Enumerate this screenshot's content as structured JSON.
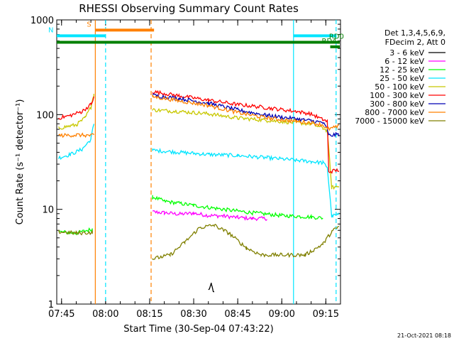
{
  "chart_data": {
    "type": "line",
    "title": "RHESSI Observing Summary Count Rates",
    "xlabel": "Start Time (30-Sep-04 07:43:22)",
    "ylabel": "Count Rate (s⁻¹ detector⁻¹)",
    "x_unit": "UT time",
    "xlim": [
      "07:43:22",
      "09:20:00"
    ],
    "ylim": [
      1,
      1000
    ],
    "yscale": "log",
    "x_ticks": [
      "07:45",
      "08:00",
      "08:15",
      "08:30",
      "08:45",
      "09:00",
      "09:15"
    ],
    "y_ticks": [
      "1",
      "10",
      "100",
      "1000"
    ],
    "legend_header": [
      "Det 1,3,4,5,6,9,",
      "FDecim 2, Att 0"
    ],
    "legend_position": "right",
    "footer_date": "21-Oct-2021 08:18",
    "flags": [
      {
        "label": "S",
        "start": "07:56:30",
        "end": "08:16:30",
        "level": 780,
        "color": "#ff8000"
      },
      {
        "label": "N",
        "start": "07:43:22",
        "end": "08:00:00",
        "level": 680,
        "color": "#00e5ff"
      },
      {
        "label": "",
        "start": "09:04:00",
        "end": "09:18:30",
        "level": 680,
        "color": "#00e5ff"
      },
      {
        "label": "",
        "start": "07:43:22",
        "end": "09:20:00",
        "level": 580,
        "color": "#008000"
      },
      {
        "label": "RD0",
        "start": "09:19:00",
        "end": "09:20:00",
        "level": 580,
        "color": "#008000"
      },
      {
        "label": "RD4",
        "start": "09:16:30",
        "end": "09:20:00",
        "level": 520,
        "color": "#008000"
      }
    ],
    "vlines": [
      {
        "t": "07:56:30",
        "color": "#ff8000",
        "style": "solid"
      },
      {
        "t": "08:00:00",
        "color": "#00e5ff",
        "style": "dashed"
      },
      {
        "t": "08:15:30",
        "color": "#ff8000",
        "style": "dashed"
      },
      {
        "t": "09:04:00",
        "color": "#00e5ff",
        "style": "solid"
      },
      {
        "t": "09:18:30",
        "color": "#00e5ff",
        "style": "dashed"
      }
    ],
    "series": [
      {
        "name": "3 - 6 keV",
        "color": "#000000",
        "points": [
          [
            "08:35:00",
            1.4
          ],
          [
            "08:36:00",
            1.6
          ],
          [
            "08:37:00",
            1.3
          ]
        ]
      },
      {
        "name": "6 - 12 keV",
        "color": "#ff00ff",
        "points": [
          [
            "08:16:00",
            9.4
          ],
          [
            "08:20:00",
            9.2
          ],
          [
            "08:25:00",
            8.9
          ],
          [
            "08:30:00",
            9.1
          ],
          [
            "08:35:00",
            8.6
          ],
          [
            "08:40:00",
            8.5
          ],
          [
            "08:45:00",
            8.2
          ],
          [
            "08:50:00",
            8.0
          ],
          [
            "08:55:00",
            8.0
          ]
        ]
      },
      {
        "name": "12 - 25 keV",
        "color": "#00ff00",
        "points": [
          [
            "07:44:00",
            5.8
          ],
          [
            "07:50:00",
            5.6
          ],
          [
            "07:55:30",
            6.2
          ],
          [
            "08:16:00",
            13.5
          ],
          [
            "08:20:00",
            12.2
          ],
          [
            "08:30:00",
            11.0
          ],
          [
            "08:40:00",
            10.0
          ],
          [
            "08:50:00",
            9.2
          ],
          [
            "09:00:00",
            8.6
          ],
          [
            "09:10:00",
            8.3
          ],
          [
            "09:14:00",
            8.1
          ]
        ]
      },
      {
        "name": "25 - 50 keV",
        "color": "#00e5ff",
        "points": [
          [
            "07:44:00",
            35
          ],
          [
            "07:48:00",
            38
          ],
          [
            "07:52:00",
            43
          ],
          [
            "07:55:00",
            55
          ],
          [
            "07:56:00",
            80
          ],
          [
            "08:16:00",
            42
          ],
          [
            "08:25:00",
            40
          ],
          [
            "08:35:00",
            38
          ],
          [
            "08:45:00",
            37
          ],
          [
            "08:55:00",
            35
          ],
          [
            "09:05:00",
            33
          ],
          [
            "09:10:00",
            32
          ],
          [
            "09:14:00",
            31
          ],
          [
            "09:15:30",
            28
          ],
          [
            "09:17:00",
            8.5
          ],
          [
            "09:19:30",
            8.8
          ]
        ]
      },
      {
        "name": "50 - 100 keV",
        "color": "#c8c800",
        "points": [
          [
            "07:44:00",
            72
          ],
          [
            "07:50:00",
            78
          ],
          [
            "07:53:00",
            92
          ],
          [
            "07:55:00",
            120
          ],
          [
            "07:56:00",
            165
          ],
          [
            "08:16:00",
            112
          ],
          [
            "08:25:00",
            108
          ],
          [
            "08:35:00",
            102
          ],
          [
            "08:45:00",
            92
          ],
          [
            "08:55:00",
            87
          ],
          [
            "09:05:00",
            82
          ],
          [
            "09:10:00",
            80
          ],
          [
            "09:14:00",
            72
          ],
          [
            "09:15:30",
            68
          ],
          [
            "09:17:00",
            17
          ],
          [
            "09:19:30",
            17.5
          ]
        ]
      },
      {
        "name": "100 - 300 keV",
        "color": "#ff0000",
        "points": [
          [
            "07:44:00",
            92
          ],
          [
            "07:48:00",
            98
          ],
          [
            "07:52:00",
            108
          ],
          [
            "07:55:00",
            128
          ],
          [
            "07:56:00",
            150
          ],
          [
            "08:16:00",
            175
          ],
          [
            "08:25:00",
            158
          ],
          [
            "08:35:00",
            142
          ],
          [
            "08:45:00",
            128
          ],
          [
            "08:55:00",
            118
          ],
          [
            "09:05:00",
            108
          ],
          [
            "09:10:00",
            102
          ],
          [
            "09:14:00",
            88
          ],
          [
            "09:15:30",
            85
          ],
          [
            "09:16:00",
            25
          ],
          [
            "09:19:30",
            26
          ]
        ]
      },
      {
        "name": "300 - 800 keV",
        "color": "#0000b4",
        "points": [
          [
            "08:16:00",
            160
          ],
          [
            "08:25:00",
            148
          ],
          [
            "08:35:00",
            132
          ],
          [
            "08:45:00",
            112
          ],
          [
            "08:55:00",
            98
          ],
          [
            "09:05:00",
            90
          ],
          [
            "09:10:00",
            86
          ],
          [
            "09:14:00",
            82
          ],
          [
            "09:15:30",
            70
          ],
          [
            "09:16:00",
            60
          ],
          [
            "09:19:30",
            62
          ]
        ]
      },
      {
        "name": "800 - 7000 keV",
        "color": "#ff8000",
        "points": [
          [
            "07:44:00",
            60
          ],
          [
            "07:50:00",
            61
          ],
          [
            "07:56:00",
            60
          ],
          [
            "08:16:00",
            155
          ],
          [
            "08:25:00",
            140
          ],
          [
            "08:35:00",
            125
          ],
          [
            "08:45:00",
            105
          ],
          [
            "08:55:00",
            92
          ],
          [
            "09:05:00",
            85
          ],
          [
            "09:10:00",
            82
          ],
          [
            "09:14:00",
            78
          ],
          [
            "09:15:30",
            70
          ],
          [
            "09:19:30",
            75
          ]
        ]
      },
      {
        "name": "7000 - 15000 keV",
        "color": "#808000",
        "points": [
          [
            "07:44:00",
            5.8
          ],
          [
            "07:50:00",
            5.6
          ],
          [
            "07:55:30",
            5.7
          ],
          [
            "08:16:00",
            3.0
          ],
          [
            "08:22:00",
            3.3
          ],
          [
            "08:27:00",
            4.5
          ],
          [
            "08:32:00",
            6.4
          ],
          [
            "08:37:00",
            6.8
          ],
          [
            "08:42:00",
            5.6
          ],
          [
            "08:48:00",
            3.9
          ],
          [
            "08:53:00",
            3.3
          ],
          [
            "09:00:00",
            3.3
          ],
          [
            "09:08:00",
            3.3
          ],
          [
            "09:14:00",
            4.3
          ],
          [
            "09:17:00",
            5.8
          ],
          [
            "09:19:30",
            6.6
          ]
        ]
      }
    ]
  }
}
